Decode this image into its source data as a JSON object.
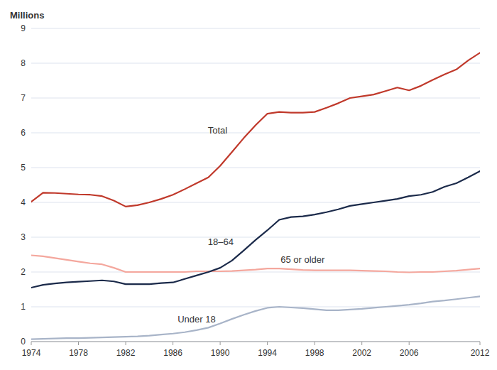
{
  "chart_data": {
    "type": "line",
    "ylabel": "Millions",
    "x": [
      1974,
      1975,
      1976,
      1977,
      1978,
      1979,
      1980,
      1981,
      1982,
      1983,
      1984,
      1985,
      1986,
      1987,
      1988,
      1989,
      1990,
      1991,
      1992,
      1993,
      1994,
      1995,
      1996,
      1997,
      1998,
      1999,
      2000,
      2001,
      2002,
      2003,
      2004,
      2005,
      2006,
      2007,
      2008,
      2009,
      2010,
      2011,
      2012
    ],
    "series": [
      {
        "name": "Total",
        "color": "#C0392B",
        "values": [
          4.02,
          4.28,
          4.27,
          4.25,
          4.23,
          4.22,
          4.18,
          4.05,
          3.88,
          3.92,
          4.0,
          4.1,
          4.22,
          4.38,
          4.55,
          4.72,
          5.05,
          5.45,
          5.85,
          6.22,
          6.55,
          6.6,
          6.58,
          6.58,
          6.6,
          6.72,
          6.85,
          7.0,
          7.05,
          7.1,
          7.2,
          7.3,
          7.22,
          7.35,
          7.52,
          7.68,
          7.82,
          8.08,
          8.3
        ]
      },
      {
        "name": "18–64",
        "color": "#1B2A4A",
        "values": [
          1.55,
          1.63,
          1.67,
          1.7,
          1.72,
          1.74,
          1.76,
          1.73,
          1.65,
          1.65,
          1.65,
          1.68,
          1.7,
          1.8,
          1.9,
          2.0,
          2.12,
          2.33,
          2.62,
          2.92,
          3.2,
          3.5,
          3.58,
          3.6,
          3.65,
          3.72,
          3.8,
          3.9,
          3.95,
          4.0,
          4.05,
          4.1,
          4.18,
          4.22,
          4.3,
          4.45,
          4.55,
          4.72,
          4.9
        ]
      },
      {
        "name": "65 or older",
        "color": "#F4A79D",
        "values": [
          2.48,
          2.45,
          2.4,
          2.35,
          2.3,
          2.25,
          2.22,
          2.12,
          2.0,
          2.0,
          2.0,
          2.0,
          2.0,
          2.0,
          2.02,
          2.02,
          2.02,
          2.03,
          2.05,
          2.07,
          2.1,
          2.1,
          2.08,
          2.06,
          2.05,
          2.05,
          2.05,
          2.05,
          2.04,
          2.03,
          2.02,
          2.0,
          1.99,
          2.0,
          2.0,
          2.02,
          2.04,
          2.07,
          2.1
        ]
      },
      {
        "name": "Under 18",
        "color": "#A8B4C8",
        "values": [
          0.07,
          0.08,
          0.09,
          0.1,
          0.1,
          0.11,
          0.12,
          0.13,
          0.14,
          0.15,
          0.17,
          0.2,
          0.23,
          0.27,
          0.33,
          0.4,
          0.52,
          0.65,
          0.77,
          0.88,
          0.97,
          1.0,
          0.98,
          0.96,
          0.93,
          0.9,
          0.9,
          0.92,
          0.94,
          0.97,
          1.0,
          1.03,
          1.06,
          1.1,
          1.15,
          1.18,
          1.22,
          1.26,
          1.3
        ]
      }
    ],
    "xlim": [
      1974,
      2012
    ],
    "xticks": [
      1974,
      1978,
      1982,
      1986,
      1990,
      1994,
      1998,
      2002,
      2006,
      2012
    ],
    "ylim": [
      0,
      9
    ],
    "yticks": [
      0,
      1,
      2,
      3,
      4,
      5,
      6,
      7,
      8,
      9
    ],
    "grid": true
  }
}
